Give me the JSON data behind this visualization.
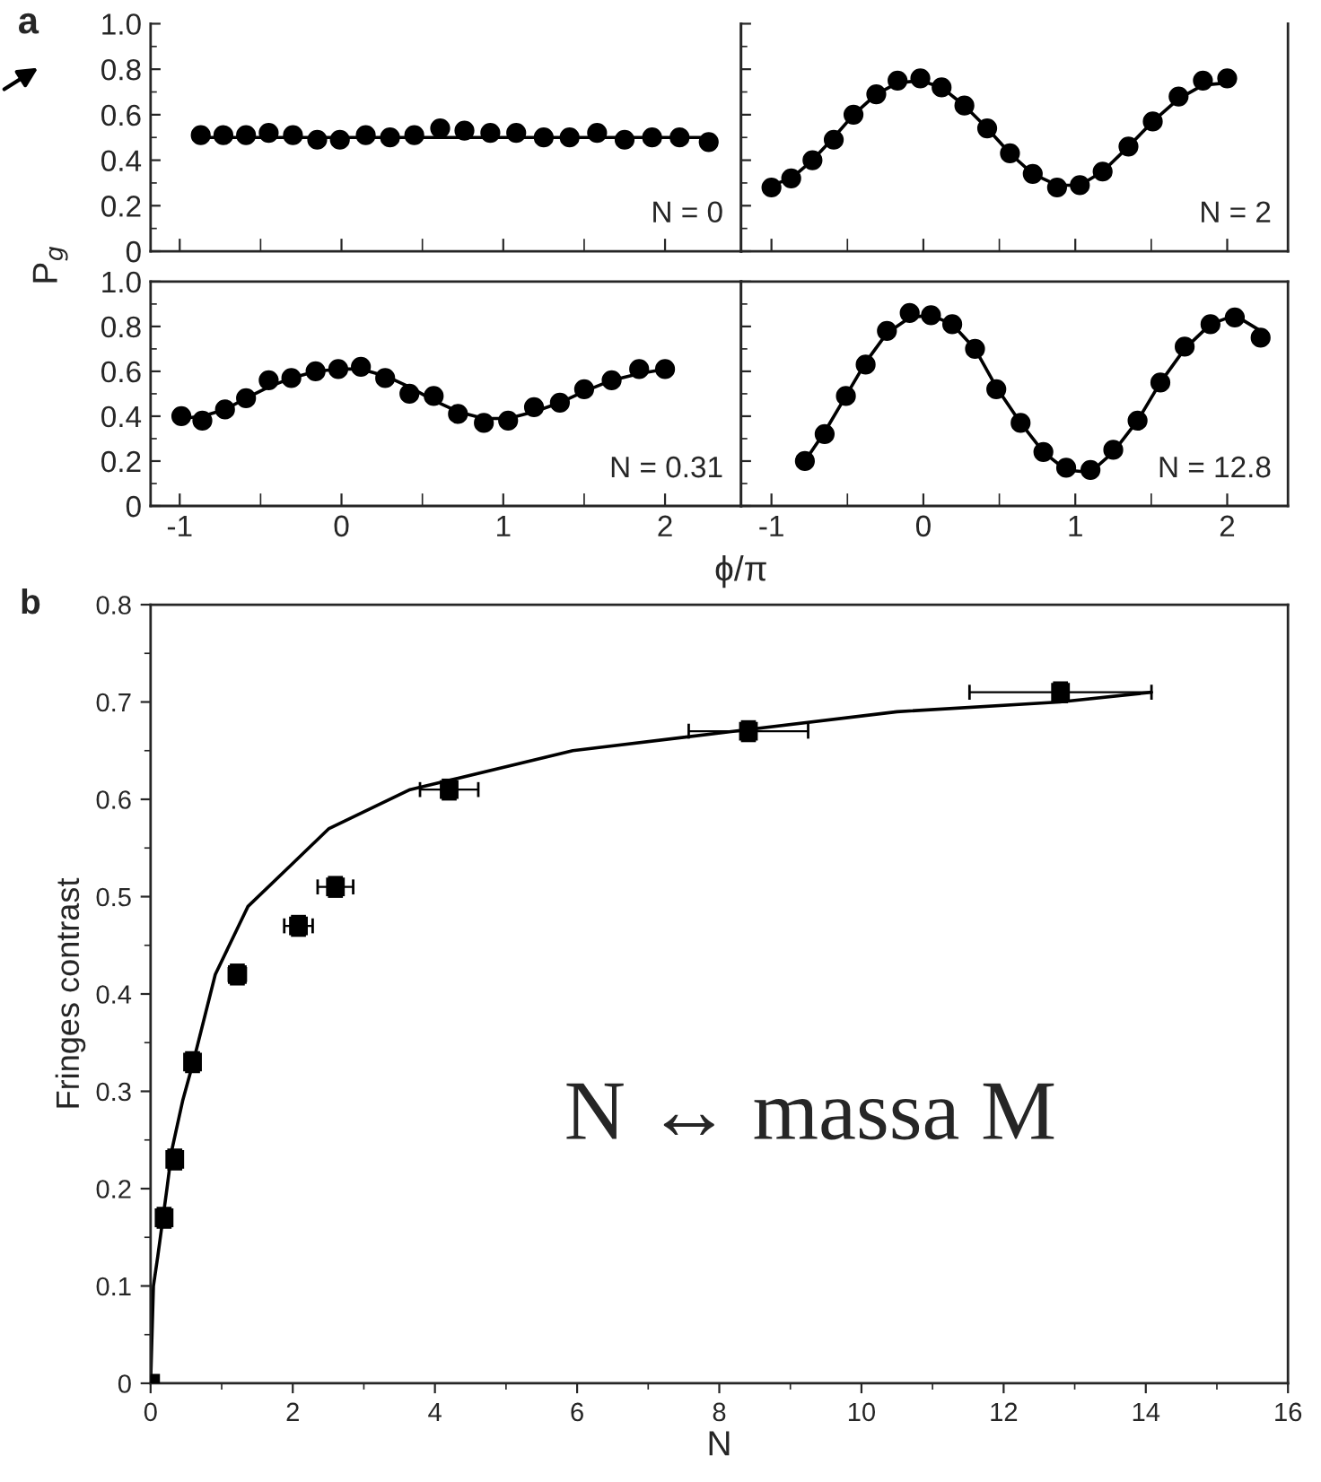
{
  "chart_data": [
    {
      "type": "scatter",
      "ylabel": "P$_{g}$",
      "annotations": [
        "a",
        "N = 0"
      ],
      "tick_labels": "y",
      "xlim": [
        -1.18,
        2.47
      ],
      "ylim": [
        0,
        1.0
      ],
      "xticks": [
        -1,
        0,
        1,
        2
      ],
      "yticks": [
        0,
        0.2,
        0.4,
        0.6,
        0.8,
        {
          "value": 1.0,
          "label": "1.0"
        }
      ],
      "series": [
        {
          "marker": "circle",
          "color": "#000000",
          "x": [
            -0.87,
            -0.73,
            -0.59,
            -0.45,
            -0.3,
            -0.15,
            -0.01,
            0.15,
            0.3,
            0.45,
            0.61,
            0.76,
            0.92,
            1.08,
            1.25,
            1.41,
            1.58,
            1.75,
            1.92,
            2.09,
            2.27
          ],
          "values": [
            0.51,
            0.51,
            0.51,
            0.52,
            0.51,
            0.49,
            0.49,
            0.51,
            0.5,
            0.51,
            0.54,
            0.53,
            0.52,
            0.52,
            0.5,
            0.5,
            0.52,
            0.49,
            0.5,
            0.5,
            0.48
          ]
        },
        {
          "type": "line",
          "marker": "none",
          "color": "#000000",
          "x": [
            -0.87,
            2.27
          ],
          "values": [
            0.5,
            0.5
          ]
        }
      ]
    },
    {
      "type": "scatter",
      "annotations": [
        "N = 2"
      ],
      "tick_labels": false,
      "xlim": [
        -1.2,
        2.4
      ],
      "ylim": [
        0,
        1.0
      ],
      "xticks": [
        -1,
        0,
        1,
        2
      ],
      "yticks": [
        0,
        0.2,
        0.4,
        0.6,
        0.8,
        1.0
      ],
      "series": [
        {
          "marker": "circle",
          "color": "#000000",
          "x": [
            -1.0,
            -0.87,
            -0.73,
            -0.59,
            -0.46,
            -0.31,
            -0.17,
            -0.02,
            0.12,
            0.27,
            0.42,
            0.57,
            0.72,
            0.88,
            1.03,
            1.18,
            1.35,
            1.51,
            1.68,
            1.84,
            2.0
          ],
          "values": [
            0.28,
            0.32,
            0.4,
            0.49,
            0.6,
            0.69,
            0.75,
            0.76,
            0.72,
            0.64,
            0.54,
            0.43,
            0.34,
            0.28,
            0.29,
            0.35,
            0.46,
            0.57,
            0.68,
            0.75,
            0.76
          ]
        },
        {
          "type": "line",
          "marker": "none",
          "color": "#000000",
          "x": [
            -1.0,
            -0.87,
            -0.73,
            -0.59,
            -0.46,
            -0.31,
            -0.17,
            -0.02,
            0.12,
            0.27,
            0.42,
            0.57,
            0.72,
            0.88,
            1.03,
            1.18,
            1.35,
            1.51,
            1.68,
            1.84,
            2.0
          ],
          "values": [
            0.29,
            0.32,
            0.4,
            0.5,
            0.6,
            0.69,
            0.74,
            0.75,
            0.72,
            0.64,
            0.54,
            0.43,
            0.34,
            0.29,
            0.29,
            0.35,
            0.46,
            0.57,
            0.67,
            0.73,
            0.74
          ]
        }
      ]
    },
    {
      "type": "scatter",
      "xlabel": "ϕ/π",
      "annotations": [
        "N = 0.31"
      ],
      "xlim": [
        -1.18,
        2.47
      ],
      "ylim": [
        0,
        1.0
      ],
      "xticks": [
        -1,
        0,
        1,
        2
      ],
      "yticks": [
        0,
        0.2,
        0.4,
        0.6,
        0.8,
        {
          "value": 1.0,
          "label": "1.0"
        }
      ],
      "series": [
        {
          "marker": "circle",
          "color": "#000000",
          "x": [
            -0.99,
            -0.86,
            -0.72,
            -0.59,
            -0.45,
            -0.31,
            -0.16,
            -0.02,
            0.12,
            0.27,
            0.42,
            0.57,
            0.72,
            0.88,
            1.03,
            1.19,
            1.35,
            1.5,
            1.67,
            1.84,
            2.0
          ],
          "values": [
            0.4,
            0.38,
            0.43,
            0.48,
            0.56,
            0.57,
            0.6,
            0.61,
            0.62,
            0.57,
            0.5,
            0.49,
            0.41,
            0.37,
            0.38,
            0.44,
            0.46,
            0.52,
            0.56,
            0.61,
            0.61
          ]
        },
        {
          "type": "line",
          "marker": "none",
          "color": "#000000",
          "x": [
            -0.99,
            -0.86,
            -0.72,
            -0.59,
            -0.45,
            -0.31,
            -0.16,
            -0.02,
            0.12,
            0.27,
            0.42,
            0.57,
            0.72,
            0.88,
            1.03,
            1.19,
            1.35,
            1.5,
            1.67,
            1.84,
            2.0
          ],
          "values": [
            0.39,
            0.4,
            0.43,
            0.48,
            0.53,
            0.57,
            0.6,
            0.61,
            0.61,
            0.58,
            0.53,
            0.47,
            0.42,
            0.39,
            0.39,
            0.42,
            0.46,
            0.51,
            0.56,
            0.59,
            0.61
          ]
        }
      ]
    },
    {
      "type": "scatter",
      "annotations": [
        "N = 12.8"
      ],
      "tick_labels": "x",
      "xlim": [
        -1.2,
        2.4
      ],
      "ylim": [
        0,
        1.0
      ],
      "xticks": [
        -1,
        0,
        1,
        2
      ],
      "yticks": [
        0,
        0.2,
        0.4,
        0.6,
        0.8,
        1.0
      ],
      "series": [
        {
          "marker": "circle",
          "color": "#000000",
          "x": [
            -0.78,
            -0.65,
            -0.51,
            -0.38,
            -0.24,
            -0.09,
            0.05,
            0.19,
            0.34,
            0.48,
            0.64,
            0.79,
            0.94,
            1.1,
            1.25,
            1.41,
            1.56,
            1.72,
            1.89,
            2.05,
            2.22
          ],
          "values": [
            0.2,
            0.32,
            0.49,
            0.63,
            0.78,
            0.86,
            0.85,
            0.81,
            0.7,
            0.52,
            0.37,
            0.24,
            0.17,
            0.16,
            0.25,
            0.38,
            0.55,
            0.71,
            0.81,
            0.84,
            0.75
          ]
        },
        {
          "type": "line",
          "marker": "none",
          "color": "#000000",
          "x": [
            -0.78,
            -0.65,
            -0.51,
            -0.38,
            -0.24,
            -0.09,
            0.05,
            0.19,
            0.34,
            0.48,
            0.64,
            0.79,
            0.94,
            1.1,
            1.25,
            1.41,
            1.56,
            1.72,
            1.89,
            2.05,
            2.22
          ],
          "values": [
            0.2,
            0.33,
            0.49,
            0.64,
            0.77,
            0.84,
            0.85,
            0.81,
            0.7,
            0.53,
            0.37,
            0.24,
            0.16,
            0.15,
            0.24,
            0.38,
            0.55,
            0.7,
            0.81,
            0.85,
            0.78
          ]
        }
      ]
    },
    {
      "type": "scatter",
      "xlabel": "N",
      "ylabel": "Fringes contrast",
      "annotations": [
        "b",
        "N ↔ massa M"
      ],
      "xlim": [
        0,
        16
      ],
      "ylim": [
        0,
        0.8
      ],
      "xticks": [
        0,
        2,
        4,
        6,
        8,
        10,
        12,
        14,
        16
      ],
      "yticks": [
        0,
        0.1,
        0.2,
        0.3,
        0.4,
        0.5,
        0.6,
        0.7,
        0.8
      ],
      "series": [
        {
          "marker": "square",
          "color": "#000000",
          "x": [
            0,
            0.19,
            0.34,
            0.59,
            1.22,
            2.08,
            2.6,
            4.2,
            8.41,
            12.8
          ],
          "values": [
            0,
            0.17,
            0.23,
            0.33,
            0.42,
            0.47,
            0.51,
            0.61,
            0.67,
            0.71
          ],
          "errors": [
            null,
            0.01,
            0.01,
            0.01,
            0.01,
            0.01,
            0.01,
            0.01,
            0.01,
            0.01
          ],
          "xerrors": [
            null,
            0.1,
            0.1,
            0.1,
            0.12,
            0.2,
            0.25,
            0.41,
            0.84,
            1.28
          ]
        },
        {
          "type": "line",
          "marker": "none",
          "color": "#000000",
          "x": [
            0,
            0.04,
            0.1,
            0.23,
            0.3,
            0.45,
            0.6,
            0.91,
            1.37,
            1.94,
            2.51,
            3.65,
            4.23,
            5.94,
            8.22,
            10.5,
            12.79,
            14.08
          ],
          "values": [
            0,
            0.1,
            0.13,
            0.2,
            0.24,
            0.29,
            0.33,
            0.42,
            0.49,
            0.53,
            0.57,
            0.61,
            0.62,
            0.65,
            0.67,
            0.69,
            0.7,
            0.71
          ]
        }
      ]
    }
  ]
}
